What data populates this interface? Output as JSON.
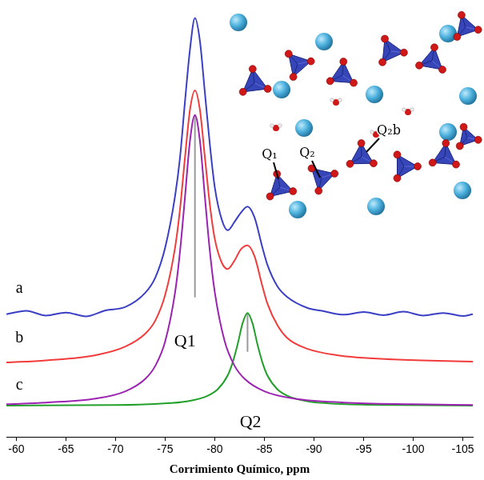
{
  "chart_data": {
    "type": "line",
    "x_label": "Corrimiento Químico, ppm",
    "xlim": [
      -59,
      -106
    ],
    "xticks": [
      -60,
      -65,
      -70,
      -75,
      -80,
      -85,
      -90,
      -95,
      -100,
      -105
    ],
    "ylim": [
      0,
      100
    ],
    "tick_labels": "x",
    "grid": false,
    "series": [
      {
        "name": "a",
        "color": "#3b3fc4",
        "x": [
          -59,
          -61,
          -63,
          -65,
          -67,
          -69,
          -71,
          -73,
          -74,
          -75,
          -76,
          -76.5,
          -77,
          -77.5,
          -78,
          -78.5,
          -79,
          -79.5,
          -80,
          -80.7,
          -81.3,
          -82,
          -82.6,
          -83.3,
          -84,
          -84.8,
          -85.3,
          -86.3,
          -87.3,
          -89.3,
          -91,
          -93,
          -95,
          -97,
          -99,
          -101,
          -103,
          -105,
          -106
        ],
        "values": [
          28.5,
          29.3,
          28.2,
          28.9,
          28.0,
          29.4,
          30.2,
          33.5,
          37,
          44,
          56,
          65,
          78,
          90,
          97.3,
          92,
          80,
          68,
          58,
          50.5,
          48,
          50,
          52,
          53.5,
          51,
          44,
          40,
          35,
          32.5,
          30,
          29.2,
          28.4,
          29.0,
          28.3,
          29.1,
          28.2,
          28.8,
          28.1,
          28.5
        ]
      },
      {
        "name": "b",
        "color": "#f23c3c",
        "x": [
          -59,
          -63,
          -68,
          -71,
          -73,
          -74,
          -75,
          -76,
          -76.5,
          -77,
          -77.5,
          -78,
          -78.5,
          -79,
          -79.5,
          -80,
          -80.7,
          -81.3,
          -82,
          -82.6,
          -83.3,
          -84,
          -84.8,
          -85.3,
          -86.3,
          -87.3,
          -89.3,
          -92.3,
          -98,
          -106
        ],
        "values": [
          17.3,
          17.8,
          19.0,
          21,
          24,
          27,
          33,
          44,
          53,
          65,
          76,
          80.5,
          76,
          65,
          54,
          46,
          40.5,
          39,
          41,
          43.5,
          44.5,
          42,
          35,
          31,
          26,
          23,
          20.5,
          19,
          18,
          17.5
        ]
      },
      {
        "name": "Q1",
        "color": "#9c22b2",
        "x": [
          -59,
          -63,
          -68,
          -71,
          -73,
          -74,
          -75,
          -76,
          -76.5,
          -77,
          -77.5,
          -78,
          -78.5,
          -79,
          -79.5,
          -80,
          -81,
          -82,
          -83,
          -85,
          -88,
          -93,
          -100,
          -106
        ],
        "values": [
          7.6,
          8.0,
          8.9,
          10.6,
          13.5,
          16.5,
          22.2,
          33.6,
          43.2,
          55.8,
          68.8,
          74.8,
          68.8,
          55.8,
          43.2,
          33.6,
          22.2,
          16.5,
          13.5,
          10.6,
          8.9,
          8.0,
          7.6,
          7.4
        ]
      },
      {
        "name": "Q2",
        "color": "#22a02a",
        "x": [
          -59,
          -70,
          -74.3,
          -77.3,
          -79.3,
          -80.3,
          -81.3,
          -81.8,
          -82.3,
          -82.8,
          -83.3,
          -83.8,
          -84.3,
          -84.8,
          -85.3,
          -86.3,
          -87.3,
          -89.3,
          -92.3,
          -98,
          -106
        ],
        "values": [
          7.3,
          7.4,
          7.7,
          8.3,
          9.6,
          11.1,
          14.3,
          17.3,
          21.5,
          26.4,
          28.8,
          26.4,
          21.5,
          17.3,
          14.3,
          11.1,
          9.6,
          8.3,
          7.7,
          7.4,
          7.3
        ]
      }
    ],
    "peak_lines": [
      {
        "x": -78.0,
        "y": [
          32.4,
          74.8
        ]
      },
      {
        "x": -83.3,
        "y": [
          19.8,
          28.8
        ]
      }
    ],
    "annotations": [
      {
        "text": "a",
        "x": -60.3,
        "y": 34.5
      },
      {
        "text": "b",
        "x": -60.3,
        "y": 23.0
      },
      {
        "text": "c",
        "x": -60.3,
        "y": 12.0
      },
      {
        "text": "Q1",
        "x": -77.0,
        "y": 22.2
      },
      {
        "text": "Q2",
        "x": -83.6,
        "y": 3.4
      }
    ],
    "inset": {
      "labels": [
        "Q₁",
        "Q₂",
        "Q₂b"
      ]
    }
  }
}
